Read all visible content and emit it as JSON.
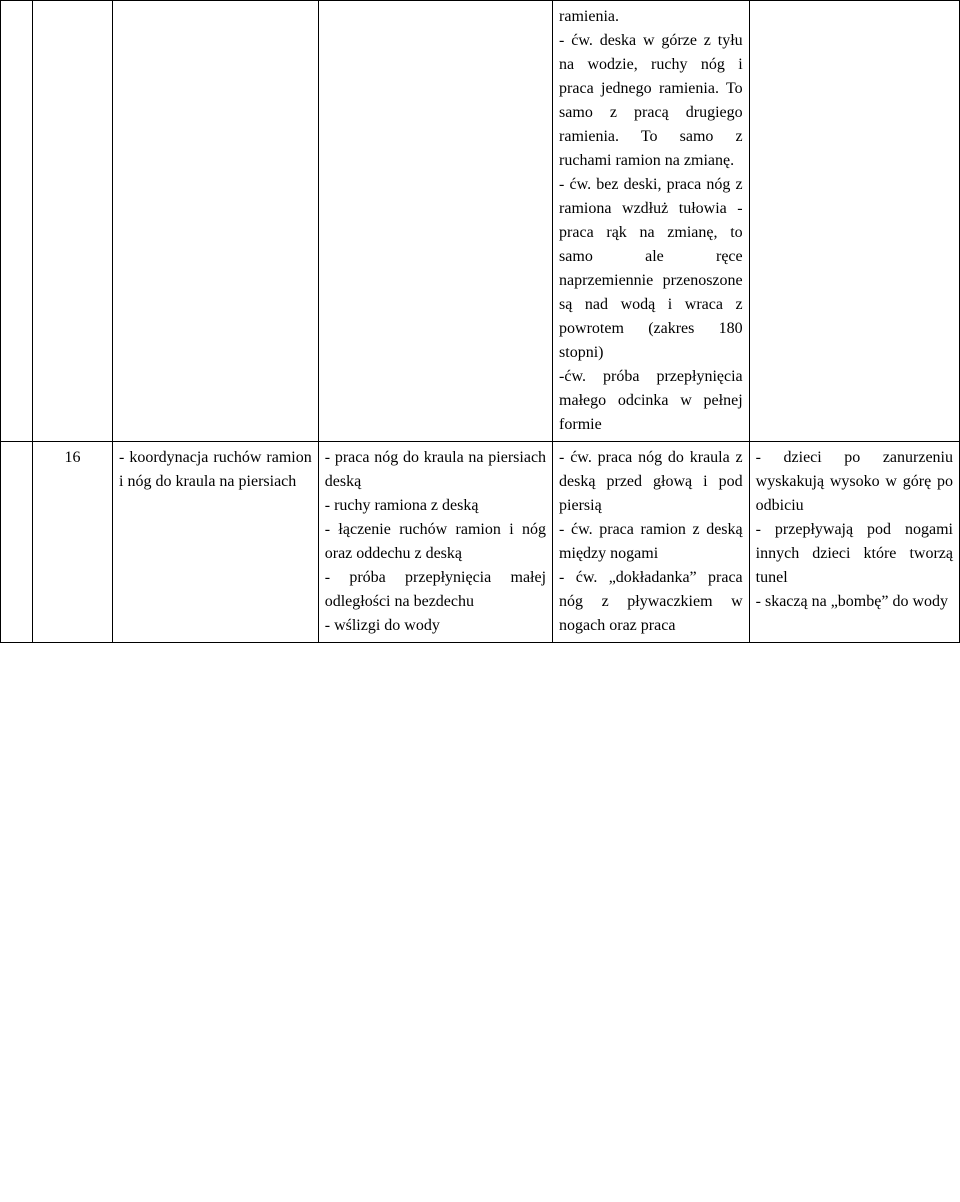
{
  "row0": {
    "c0": "",
    "c1": "",
    "c2": "",
    "c3": "",
    "c4": "ramienia.\n- ćw. deska w górze z tyłu na wodzie, ruchy nóg i praca jednego ramienia. To samo z pracą drugiego ramienia. To samo z ruchami ramion na zmianę.\n- ćw. bez deski, praca nóg z ramiona wzdłuż tułowia - praca rąk na zmianę, to samo ale ręce naprzemiennie przenoszone są nad wodą i wraca z powrotem (zakres 180 stopni)\n-ćw. próba przepłynięcia małego odcinka w pełnej formie",
    "c5": ""
  },
  "row1": {
    "c0": "",
    "c1": "16",
    "c2": "- koordynacja ruchów ramion i nóg do kraula na piersiach",
    "c3": "- praca nóg do kraula na piersiach deską\n- ruchy ramiona z deską\n- łączenie ruchów ramion i nóg oraz oddechu z deską\n- próba przepłynięcia małej odległości na bezdechu\n- wślizgi do wody",
    "c4": "- ćw. praca nóg do kraula z deską przed głową i pod piersią\n- ćw. praca ramion z deską między nogami\n- ćw. „dokładanka” praca nóg z pływaczkiem w nogach oraz praca",
    "c5": "- dzieci po zanurzeniu wyskakują wysoko w górę po odbiciu\n- przepływają pod nogami innych dzieci które tworzą tunel\n- skaczą na „bombę” do wody"
  }
}
